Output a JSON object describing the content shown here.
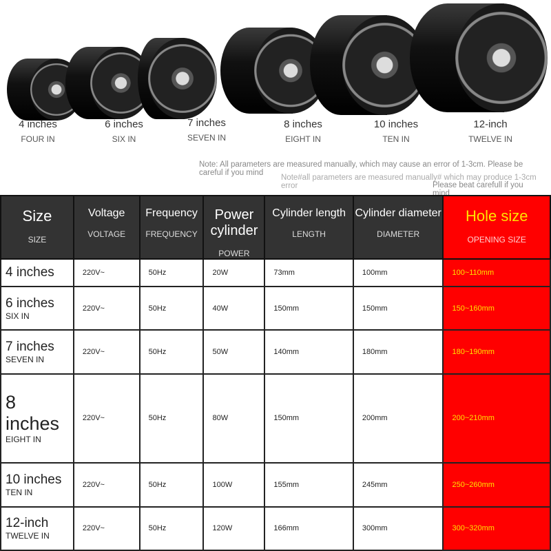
{
  "fans": [
    {
      "label": "4 inches",
      "sub": "FOUR IN"
    },
    {
      "label": "6 inches",
      "sub": "SIX IN"
    },
    {
      "label": "7 inches",
      "sub": "SEVEN IN"
    },
    {
      "label": "8 inches",
      "sub": "EIGHT IN"
    },
    {
      "label": "10 inches",
      "sub": "TEN IN"
    },
    {
      "label": "12-inch",
      "sub": "TWELVE IN"
    }
  ],
  "notes": {
    "note1": "Note: All parameters are measured manually, which may cause an error of 1-3cm. Please be careful if you mind",
    "note2": "Note#all parameters are measured manually# which may produce 1-3cm error",
    "note3": "Please beat carefull if you mind"
  },
  "table": {
    "headers": [
      {
        "title": "Size",
        "sub": "SIZE"
      },
      {
        "title": "Voltage",
        "sub": "VOLTAGE"
      },
      {
        "title": "Frequency",
        "sub": "FREQUENCY"
      },
      {
        "title": "Power cylinder",
        "sub": "POWER"
      },
      {
        "title": "Cylinder length",
        "sub": "LENGTH"
      },
      {
        "title": "Cylinder diameter",
        "sub": "DIAMETER"
      },
      {
        "title": "Hole size",
        "sub": "OPENING SIZE"
      }
    ],
    "rows": [
      {
        "size": "4 inches",
        "sub": "",
        "voltage": "220V~",
        "freq": "50Hz",
        "power": "20W",
        "length": "73mm",
        "diameter": "100mm",
        "hole": "100~110mm"
      },
      {
        "size": "6 inches",
        "sub": "SIX IN",
        "voltage": "220V~",
        "freq": "50Hz",
        "power": "40W",
        "length": "150mm",
        "diameter": "150mm",
        "hole": "150~160mm"
      },
      {
        "size": "7 inches",
        "sub": "SEVEN IN",
        "voltage": "220V~",
        "freq": "50Hz",
        "power": "50W",
        "length": "140mm",
        "diameter": "180mm",
        "hole": "180~190mm"
      },
      {
        "size": "8 inches",
        "sub": "EIGHT IN",
        "voltage": "220V~",
        "freq": "50Hz",
        "power": "80W",
        "length": "150mm",
        "diameter": "200mm",
        "hole": "200~210mm"
      },
      {
        "size": "10 inches",
        "sub": "TEN IN",
        "voltage": "220V~",
        "freq": "50Hz",
        "power": "100W",
        "length": "155mm",
        "diameter": "245mm",
        "hole": "250~260mm"
      },
      {
        "size": "12-inch",
        "sub": "TWELVE IN",
        "voltage": "220V~",
        "freq": "50Hz",
        "power": "120W",
        "length": "166mm",
        "diameter": "300mm",
        "hole": "300~320mm"
      }
    ]
  },
  "colors": {
    "header": "#333333",
    "accent": "#ff0000",
    "hole_text": "#ffe300"
  }
}
